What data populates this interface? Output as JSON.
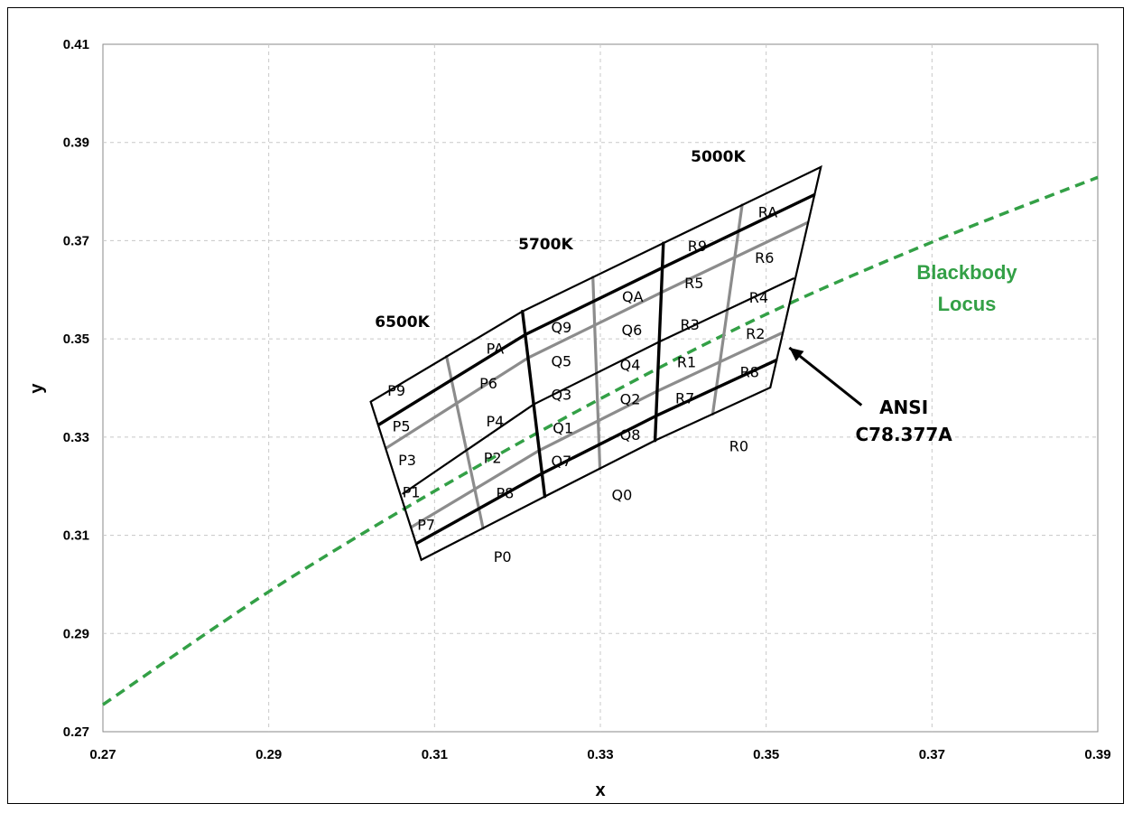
{
  "chart_data": {
    "type": "line",
    "xlabel": "x",
    "ylabel": "y",
    "xlim": [
      0.27,
      0.39
    ],
    "ylim": [
      0.27,
      0.41
    ],
    "xticks": [
      0.27,
      0.29,
      0.31,
      0.33,
      0.35,
      0.37,
      0.39
    ],
    "yticks": [
      0.27,
      0.29,
      0.31,
      0.33,
      0.35,
      0.37,
      0.39,
      0.41
    ],
    "xtick_labels": [
      "0.27",
      "0.29",
      "0.31",
      "0.33",
      "0.35",
      "0.37",
      "0.39"
    ],
    "ytick_labels": [
      "0.27",
      "0.29",
      "0.31",
      "0.33",
      "0.35",
      "0.37",
      "0.39",
      "0.41"
    ],
    "grid": true,
    "locus": {
      "label_line1": "Blackbody",
      "label_line2": "Locus",
      "color": "#33a046",
      "points": [
        [
          0.27,
          0.2755
        ],
        [
          0.29,
          0.2985
        ],
        [
          0.31,
          0.319
        ],
        [
          0.33,
          0.3378
        ],
        [
          0.35,
          0.355
        ],
        [
          0.37,
          0.3697
        ],
        [
          0.39,
          0.3829
        ]
      ]
    },
    "quadrangles": [
      {
        "group": "P",
        "cct_label": "6500K",
        "outer": [
          [
            0.3023,
            0.3372
          ],
          [
            0.3206,
            0.3556
          ],
          [
            0.3233,
            0.3179
          ],
          [
            0.3084,
            0.305
          ]
        ],
        "left_mid": [
          0.3062,
          0.3185
        ],
        "right_mid": [
          0.322,
          0.3367
        ],
        "bins": [
          {
            "label": "P9",
            "x": 0.3054,
            "y": 0.3395
          },
          {
            "label": "PA",
            "x": 0.3173,
            "y": 0.3481
          },
          {
            "label": "P5",
            "x": 0.306,
            "y": 0.3323
          },
          {
            "label": "P6",
            "x": 0.3165,
            "y": 0.341
          },
          {
            "label": "P3",
            "x": 0.3067,
            "y": 0.3254
          },
          {
            "label": "P4",
            "x": 0.3173,
            "y": 0.3333
          },
          {
            "label": "P1",
            "x": 0.3072,
            "y": 0.3188
          },
          {
            "label": "P2",
            "x": 0.317,
            "y": 0.3258
          },
          {
            "label": "P7",
            "x": 0.309,
            "y": 0.3122
          },
          {
            "label": "P8",
            "x": 0.3185,
            "y": 0.3187
          }
        ]
      },
      {
        "group": "Q",
        "cct_label": "5700K",
        "outer": [
          [
            0.3206,
            0.3556
          ],
          [
            0.3376,
            0.3695
          ],
          [
            0.3366,
            0.3293
          ],
          [
            0.3233,
            0.3179
          ]
        ],
        "left_mid": [
          0.322,
          0.3367
        ],
        "right_mid": [
          0.3371,
          0.3494
        ],
        "bins": [
          {
            "label": "Q9",
            "x": 0.3253,
            "y": 0.3524
          },
          {
            "label": "QA",
            "x": 0.3339,
            "y": 0.3587
          },
          {
            "label": "Q5",
            "x": 0.3253,
            "y": 0.3455
          },
          {
            "label": "Q6",
            "x": 0.3338,
            "y": 0.3519
          },
          {
            "label": "Q3",
            "x": 0.3253,
            "y": 0.3387
          },
          {
            "label": "Q4",
            "x": 0.3336,
            "y": 0.3448
          },
          {
            "label": "Q1",
            "x": 0.3255,
            "y": 0.3319
          },
          {
            "label": "Q2",
            "x": 0.3336,
            "y": 0.3378
          },
          {
            "label": "Q7",
            "x": 0.3253,
            "y": 0.3252
          },
          {
            "label": "Q8",
            "x": 0.3336,
            "y": 0.3305
          }
        ]
      },
      {
        "group": "R",
        "cct_label": "5000K",
        "outer": [
          [
            0.3376,
            0.3695
          ],
          [
            0.3566,
            0.385
          ],
          [
            0.3505,
            0.3401
          ],
          [
            0.3366,
            0.3293
          ]
        ],
        "left_mid": [
          0.3371,
          0.3494
        ],
        "right_mid": [
          0.3533,
          0.3623
        ],
        "bins": [
          {
            "label": "R9",
            "x": 0.3417,
            "y": 0.369
          },
          {
            "label": "RA",
            "x": 0.3502,
            "y": 0.3759
          },
          {
            "label": "R5",
            "x": 0.3413,
            "y": 0.3614
          },
          {
            "label": "R6",
            "x": 0.3498,
            "y": 0.3666
          },
          {
            "label": "R3",
            "x": 0.3408,
            "y": 0.353
          },
          {
            "label": "R4",
            "x": 0.3491,
            "y": 0.3585
          },
          {
            "label": "R1",
            "x": 0.3404,
            "y": 0.3453
          },
          {
            "label": "R2",
            "x": 0.3487,
            "y": 0.3511
          },
          {
            "label": "R7",
            "x": 0.3402,
            "y": 0.338
          },
          {
            "label": "R8",
            "x": 0.348,
            "y": 0.3433
          }
        ]
      }
    ],
    "region_labels": [
      {
        "label": "P0",
        "x": 0.3182,
        "y": 0.3057
      },
      {
        "label": "Q0",
        "x": 0.3326,
        "y": 0.3183
      },
      {
        "label": "R0",
        "x": 0.3467,
        "y": 0.3282
      }
    ],
    "cct_label_positions": [
      {
        "label": "6500K",
        "x": 0.3061,
        "y": 0.3535
      },
      {
        "label": "5700K",
        "x": 0.3234,
        "y": 0.3693
      },
      {
        "label": "5000K",
        "x": 0.3442,
        "y": 0.3872
      }
    ],
    "annotation": {
      "line1": "ANSI",
      "line2": "C78.377A",
      "text_x": 0.3666,
      "text_y": 0.3322,
      "arrow_from": [
        0.3615,
        0.3365
      ],
      "arrow_to": [
        0.3528,
        0.3482
      ]
    }
  }
}
